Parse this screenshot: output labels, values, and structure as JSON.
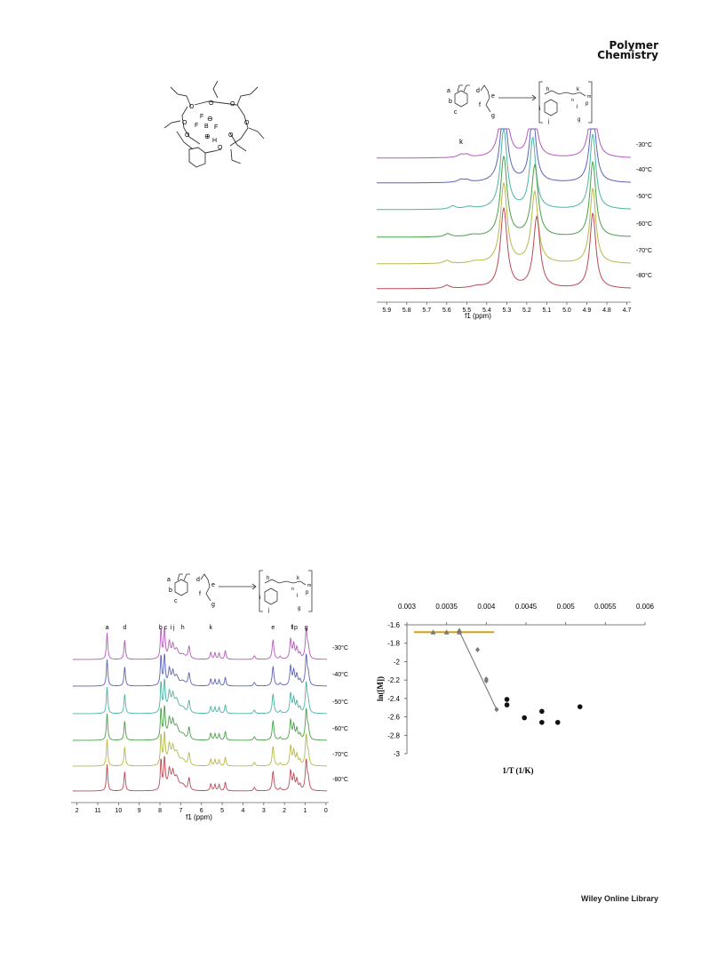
{
  "header": {
    "journal_line1": "Polymer",
    "journal_line2": "Chemistry"
  },
  "footer": {
    "publisher": "Wiley Online Library"
  },
  "complex_structure": {
    "atom_labels": [
      "O",
      "O",
      "O",
      "O",
      "O",
      "O",
      "O",
      "F",
      "F",
      "F",
      "B",
      "H",
      "O"
    ],
    "charges": [
      "⊖",
      "⊕"
    ]
  },
  "scheme": {
    "reactant_labels": [
      "a",
      "b",
      "c",
      "d",
      "e",
      "f",
      "g"
    ],
    "product_labels": [
      "h",
      "i",
      "j",
      "k",
      "n",
      "l",
      "p",
      "g",
      "m"
    ]
  },
  "chart_data": [
    {
      "type": "line",
      "title": "",
      "xlabel": "f1 (ppm)",
      "ylabel": "",
      "x_ticks": [
        "5.9",
        "5.8",
        "5.7",
        "5.6",
        "5.5",
        "5.4",
        "5.3",
        "5.2",
        "5.1",
        "5.0",
        "4.9",
        "4.8",
        "4.7"
      ],
      "xlim": [
        5.95,
        4.68
      ],
      "peak_label": "k",
      "series": [
        {
          "name": "-30°C",
          "color": "#b35bb8",
          "baseline": 178,
          "peaks": [
            [
              5.53,
              3,
              0.018
            ],
            [
              5.5,
              3,
              0.018
            ],
            [
              5.315,
              90,
              0.02
            ],
            [
              5.17,
              80,
              0.018
            ],
            [
              4.87,
              85,
              0.018
            ]
          ]
        },
        {
          "name": "-40°C",
          "color": "#5b63b3",
          "baseline": 206,
          "peaks": [
            [
              5.53,
              3,
              0.018
            ],
            [
              5.5,
              2.5,
              0.018
            ],
            [
              5.315,
              90,
              0.02
            ],
            [
              5.17,
              80,
              0.018
            ],
            [
              4.87,
              85,
              0.018
            ]
          ]
        },
        {
          "name": "-50°C",
          "color": "#4bb3a5",
          "baseline": 236,
          "peaks": [
            [
              5.57,
              3.5,
              0.018
            ],
            [
              5.49,
              2.5,
              0.03
            ],
            [
              5.315,
              90,
              0.02
            ],
            [
              5.17,
              80,
              0.018
            ],
            [
              4.87,
              85,
              0.018
            ]
          ]
        },
        {
          "name": "-60°C",
          "color": "#4a9f4a",
          "baseline": 267,
          "peaks": [
            [
              5.595,
              3.5,
              0.018
            ],
            [
              5.47,
              2,
              0.03
            ],
            [
              5.315,
              90,
              0.02
            ],
            [
              5.16,
              80,
              0.02
            ],
            [
              4.87,
              85,
              0.018
            ]
          ]
        },
        {
          "name": "-70°C",
          "color": "#b7b84a",
          "baseline": 297,
          "peaks": [
            [
              5.6,
              3.5,
              0.018
            ],
            [
              5.46,
              2,
              0.03
            ],
            [
              5.315,
              90,
              0.02
            ],
            [
              5.16,
              80,
              0.02
            ],
            [
              4.87,
              85,
              0.018
            ]
          ]
        },
        {
          "name": "-80°C",
          "color": "#b84a55",
          "baseline": 325,
          "peaks": [
            [
              5.6,
              3.5,
              0.018
            ],
            [
              5.45,
              2,
              0.035
            ],
            [
              5.315,
              90,
              0.02
            ],
            [
              5.15,
              80,
              0.02
            ],
            [
              4.87,
              85,
              0.018
            ]
          ]
        }
      ]
    },
    {
      "type": "line",
      "title": "",
      "xlabel": "f1 (ppm)",
      "ylabel": "",
      "x_ticks": [
        "2",
        "11",
        "10",
        "9",
        "8",
        "7",
        "6",
        "5",
        "4",
        "3",
        "2",
        "1",
        "0"
      ],
      "xlim": [
        12.2,
        -0.05
      ],
      "peak_labels": [
        [
          "a",
          10.55
        ],
        [
          "d",
          9.7
        ],
        [
          "b c",
          7.85
        ],
        [
          "i j",
          7.4
        ],
        [
          "h",
          6.9
        ],
        [
          "k",
          5.55
        ],
        [
          "e",
          2.55
        ],
        [
          "f",
          1.65
        ],
        [
          "l",
          1.6
        ],
        [
          "p",
          1.45
        ],
        [
          "g",
          0.95
        ]
      ],
      "series": [
        {
          "name": "-30°C",
          "color": "#b35bb8",
          "baseline": 742
        },
        {
          "name": "-40°C",
          "color": "#5b63b3",
          "baseline": 772
        },
        {
          "name": "-50°C",
          "color": "#4bb3a5",
          "baseline": 803
        },
        {
          "name": "-60°C",
          "color": "#4a9f4a",
          "baseline": 833
        },
        {
          "name": "-70°C",
          "color": "#b7b84a",
          "baseline": 862
        },
        {
          "name": "-80°C",
          "color": "#b84a55",
          "baseline": 890
        }
      ]
    },
    {
      "type": "scatter",
      "title": "",
      "xlabel": "1/T (1/K)",
      "ylabel": "ln([M])",
      "x_ticks": [
        "0.003",
        "0.0035",
        "0.004",
        "0.0045",
        "0.005",
        "0.0055",
        "0.006"
      ],
      "y_ticks": [
        "-1.6",
        "-1.8",
        "-2",
        "-2.2",
        "-2.4",
        "-2.6",
        "-2.8",
        "-3"
      ],
      "xlim": [
        0.003,
        0.006
      ],
      "ylim": [
        -3,
        -1.6
      ],
      "series": [
        {
          "name": "triangles",
          "marker": "triangle",
          "color": "#777777",
          "points": [
            [
              0.00333,
              -1.68
            ],
            [
              0.0035,
              -1.68
            ],
            [
              0.00366,
              -1.68
            ],
            [
              0.00366,
              -1.66
            ]
          ]
        },
        {
          "name": "diamonds",
          "marker": "diamond",
          "color": "#777777",
          "points": [
            [
              0.00366,
              -1.67
            ],
            [
              0.00389,
              -1.87
            ],
            [
              0.004,
              -2.19
            ],
            [
              0.004,
              -2.21
            ],
            [
              0.00413,
              -2.52
            ]
          ]
        },
        {
          "name": "circles",
          "marker": "circle",
          "color": "#111111",
          "points": [
            [
              0.00426,
              -2.41
            ],
            [
              0.00426,
              -2.47
            ],
            [
              0.00448,
              -2.61
            ],
            [
              0.0047,
              -2.54
            ],
            [
              0.0047,
              -2.66
            ],
            [
              0.0049,
              -2.66
            ],
            [
              0.00518,
              -2.49
            ]
          ]
        }
      ],
      "lines": [
        {
          "color": "#d4a017",
          "points": [
            [
              0.00309,
              -1.68
            ],
            [
              0.0041,
              -1.68
            ]
          ]
        },
        {
          "color": "#7a7a7a",
          "points": [
            [
              0.00366,
              -1.67
            ],
            [
              0.00413,
              -2.52
            ]
          ]
        }
      ]
    }
  ]
}
